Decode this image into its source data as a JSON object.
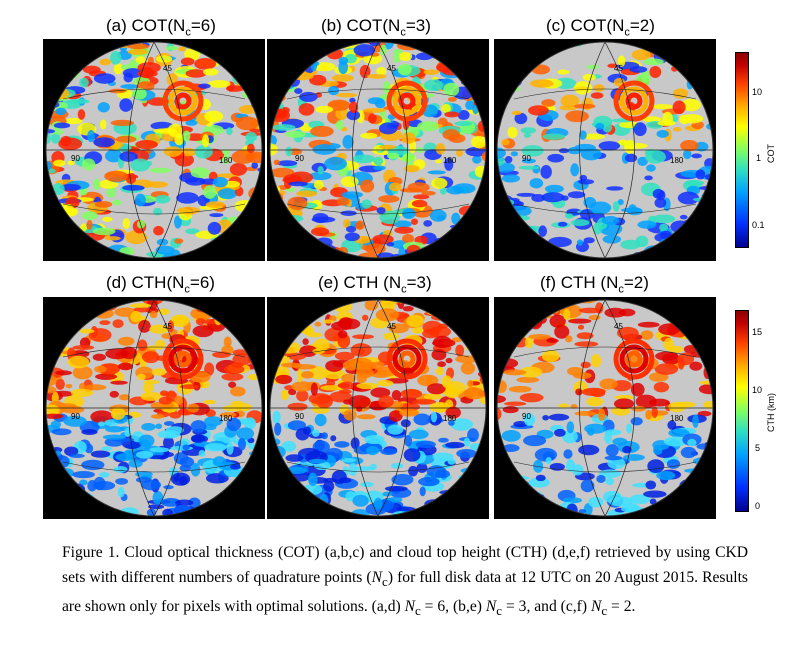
{
  "panels": [
    {
      "label": "(a) COT(N",
      "sub": "c",
      "tail": "=6)",
      "var": "cot",
      "nc": 6
    },
    {
      "label": "(b) COT(N",
      "sub": "c",
      "tail": "=3)",
      "var": "cot",
      "nc": 3
    },
    {
      "label": "(c) COT(N",
      "sub": "c",
      "tail": "=2)",
      "var": "cot",
      "nc": 2
    },
    {
      "label": "(d) CTH(N",
      "sub": "c",
      "tail": "=6)",
      "var": "cth",
      "nc": 6
    },
    {
      "label": "(e) CTH (N",
      "sub": "c",
      "tail": "=3)",
      "var": "cth",
      "nc": 3
    },
    {
      "label": "(f) CTH (N",
      "sub": "c",
      "tail": "=2)",
      "var": "cth",
      "nc": 2
    }
  ],
  "map_labels": {
    "lon1": "90",
    "lon2": "180",
    "lat": "45"
  },
  "colorbars": {
    "cot": {
      "title": "COT",
      "ticks": [
        "10",
        "1",
        "0.1"
      ],
      "scale": "log"
    },
    "cth": {
      "title": "CTH (km)",
      "ticks": [
        "15",
        "10",
        "5",
        "0"
      ],
      "scale": "linear"
    }
  },
  "colors": {
    "low": "#00008f",
    "high": "#8b0000",
    "land_gray": "#c8c8c8"
  },
  "caption": {
    "p1": "Figure 1. Cloud optical thickness (COT) (a,b,c) and cloud top height (CTH) (d,e,f) retrieved by using CKD sets with different numbers of quadrature points (",
    "nc1": "N",
    "p2": ") for full disk data at 12 UTC on 20 August 2015. Results are shown only for pixels with optimal solutions. (a,d) ",
    "p3": " = 6, (b,e) ",
    "p4": " = 3, and (c,f) ",
    "p5": " = 2.",
    "sub": "c"
  }
}
